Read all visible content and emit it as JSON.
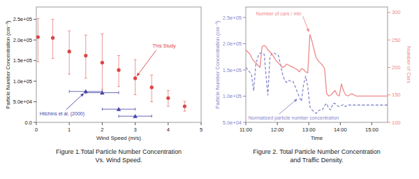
{
  "chart_data": [
    {
      "type": "scatter",
      "title": "Figure 1.Total Particle Number Concentration\nVs. Wind Speed.",
      "xlabel": "Wind Speed (m/s)",
      "ylabel": "Particle Number Concentration (cm⁻³)",
      "xlim": [
        0,
        5
      ],
      "ylim": [
        0,
        280000.0
      ],
      "xticks": [
        0,
        1,
        2,
        3,
        4,
        5
      ],
      "yticks": [
        {
          "value": 0,
          "label": "0.0"
        },
        {
          "value": 50000.0,
          "label": "5.0e+04"
        },
        {
          "value": 100000.0,
          "label": "1.0e+05"
        },
        {
          "value": 150000.0,
          "label": "1.5e+05"
        },
        {
          "value": 200000.0,
          "label": "2.0e+05"
        },
        {
          "value": 250000.0,
          "label": "2.5e+05"
        }
      ],
      "grid": false,
      "series": [
        {
          "color": "#dd4444",
          "marker": "circle",
          "annotation": "This Study",
          "x": [
            0.05,
            0.5,
            1.0,
            1.5,
            2.0,
            2.5,
            3.0,
            3.5,
            4.0,
            4.5
          ],
          "values": [
            207000.0,
            205000.0,
            172000.0,
            162000.0,
            145000.0,
            127000.0,
            107000.0,
            85000.0,
            59000.0,
            39000.0
          ],
          "error_low": [
            60000.0,
            50000.0,
            55000.0,
            55000.0,
            65000.0,
            40000.0,
            40000.0,
            35000.0,
            20000.0,
            12000.0
          ],
          "error_high": [
            45000.0,
            45000.0,
            50000.0,
            50000.0,
            70000.0,
            35000.0,
            45000.0,
            30000.0,
            18000.0,
            12000.0
          ]
        },
        {
          "color": "#4444aa",
          "marker": "triangle",
          "annotation": "Hitchins et al. (2000)",
          "x": [
            1.5,
            2.0,
            2.5,
            3.0
          ],
          "values": [
            75000.0,
            72000.0,
            32000.0,
            15000.0
          ],
          "xerr": [
            0.5,
            0.5,
            0.5,
            0.5
          ]
        }
      ]
    },
    {
      "type": "line",
      "title": "Figure 2. Total Particle Number Concentration\nand Traffic Density.",
      "xlabel": "Time",
      "ylabel": "Particle Number Concentration (cm⁻³)",
      "y2label": "Number of Cars",
      "xlim": [
        0,
        270
      ],
      "ylim": [
        50000.0,
        270000.0
      ],
      "y2lim": [
        100,
        310
      ],
      "xticks": [
        {
          "value": 0,
          "label": "11:00"
        },
        {
          "value": 60,
          "label": "12:00"
        },
        {
          "value": 120,
          "label": "13:00"
        },
        {
          "value": 180,
          "label": "14:00"
        },
        {
          "value": 240,
          "label": "15:00"
        }
      ],
      "yticks": [
        {
          "value": 50000.0,
          "label": "5.0e+04"
        },
        {
          "value": 100000.0,
          "label": "1.0e+05"
        },
        {
          "value": 150000.0,
          "label": "1.5e+05"
        },
        {
          "value": 200000.0,
          "label": "2.0e+05"
        },
        {
          "value": 250000.0,
          "label": "2.5e+05"
        }
      ],
      "y2ticks": [
        100,
        150,
        200,
        250,
        300
      ],
      "grid": false,
      "series": [
        {
          "color": "#8888cc",
          "line_style": "dashed",
          "annotation": "Normalized particle number concentration",
          "x": [
            0,
            4,
            8,
            11,
            15,
            19,
            23,
            27,
            31,
            35,
            38,
            42,
            46,
            50,
            54,
            58,
            62,
            66,
            70,
            74,
            78,
            82,
            86,
            90,
            94,
            98,
            102,
            106,
            110,
            114,
            118,
            122,
            126,
            130,
            134,
            138,
            142,
            146,
            150,
            154,
            158,
            162,
            166,
            170,
            174,
            178,
            182,
            186,
            190,
            194,
            198,
            202,
            206,
            210,
            214,
            218,
            222,
            226,
            230,
            234,
            238,
            242,
            246,
            250,
            254,
            258,
            262,
            266,
            270
          ],
          "values": [
            155000.0,
            150000.0,
            145000.0,
            140000.0,
            110000.0,
            160000.0,
            175000.0,
            182000.0,
            183000.0,
            180000.0,
            145000.0,
            102000.0,
            175000.0,
            182000.0,
            182000.0,
            180000.0,
            178000.0,
            160000.0,
            142000.0,
            130000.0,
            126000.0,
            130000.0,
            128000.0,
            128000.0,
            118000.0,
            108000.0,
            98000.0,
            90000.0,
            122000.0,
            138000.0,
            118000.0,
            80000.0,
            74000.0,
            70000.0,
            67000.0,
            72000.0,
            74000.0,
            74000.0,
            82000.0,
            86000.0,
            76000.0,
            74000.0,
            86000.0,
            86000.0,
            82000.0,
            80000.0,
            82000.0,
            84000.0,
            80000.0,
            83000.0,
            83000.0,
            83000.0,
            83000.0,
            83000.0,
            83000.0,
            83000.0,
            83000.0,
            83000.0,
            83000.0,
            83000.0,
            83000.0,
            83000.0,
            83000.0,
            83000.0,
            83000.0,
            83000.0,
            83000.0,
            83000.0,
            83000.0
          ]
        },
        {
          "color": "#ee8888",
          "line_style": "solid",
          "axis": "y2",
          "annotation": "Number of cars / min",
          "x": [
            0,
            4,
            8,
            11,
            15,
            19,
            23,
            27,
            31,
            35,
            38,
            42,
            46,
            50,
            54,
            58,
            62,
            66,
            70,
            74,
            78,
            82,
            86,
            90,
            94,
            98,
            102,
            106,
            110,
            114,
            118,
            122,
            126,
            130,
            134,
            138,
            142,
            146,
            150,
            154,
            158,
            162,
            166,
            170,
            174,
            178,
            182,
            186,
            190,
            194,
            198,
            202,
            206,
            210,
            214,
            218,
            222,
            226,
            230,
            234,
            238,
            242,
            246,
            250,
            254,
            258,
            262,
            266,
            270
          ],
          "values": [
            232,
            228,
            224,
            218,
            212,
            208,
            204,
            200,
            238,
            240,
            238,
            232,
            228,
            224,
            218,
            212,
            208,
            204,
            200,
            202,
            206,
            204,
            202,
            200,
            198,
            196,
            192,
            198,
            196,
            192,
            190,
            260,
            248,
            232,
            218,
            212,
            208,
            204,
            198,
            152,
            148,
            150,
            154,
            158,
            150,
            148,
            170,
            158,
            150,
            148,
            150,
            152,
            150,
            148,
            148,
            148,
            148,
            148,
            148,
            148,
            148,
            148,
            148,
            148,
            148,
            148,
            148,
            148,
            148
          ]
        }
      ]
    }
  ]
}
